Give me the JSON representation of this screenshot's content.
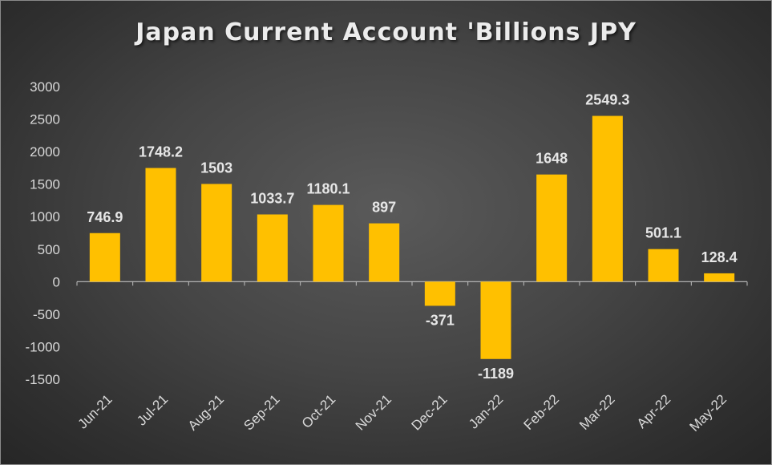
{
  "chart_data": {
    "type": "bar",
    "title": "Japan Current Account 'Billions JPY",
    "categories": [
      "Jun-21",
      "Jul-21",
      "Aug-21",
      "Sep-21",
      "Oct-21",
      "Nov-21",
      "Dec-21",
      "Jan-22",
      "Feb-22",
      "Mar-22",
      "Apr-22",
      "May-22"
    ],
    "values": [
      746.9,
      1748.2,
      1503,
      1033.7,
      1180.1,
      897,
      -371,
      -1189,
      1648,
      2549.3,
      501.1,
      128.4
    ],
    "data_labels": [
      "746.9",
      "1748.2",
      "1503",
      "1033.7",
      "1180.1",
      "897",
      "-371",
      "-1189",
      "1648",
      "2549.3",
      "501.1",
      "128.4"
    ],
    "yticks": [
      3000,
      2500,
      2000,
      1500,
      1000,
      500,
      0,
      -500,
      -1000,
      -1500
    ],
    "ylim": [
      -1500,
      3000
    ],
    "grid": false,
    "legend": "none",
    "xlabel": "",
    "ylabel": "",
    "colors": {
      "bar": "#ffc000",
      "background": "#404040",
      "text": "#d9d9d9",
      "axis": "#bfbfbf"
    }
  }
}
